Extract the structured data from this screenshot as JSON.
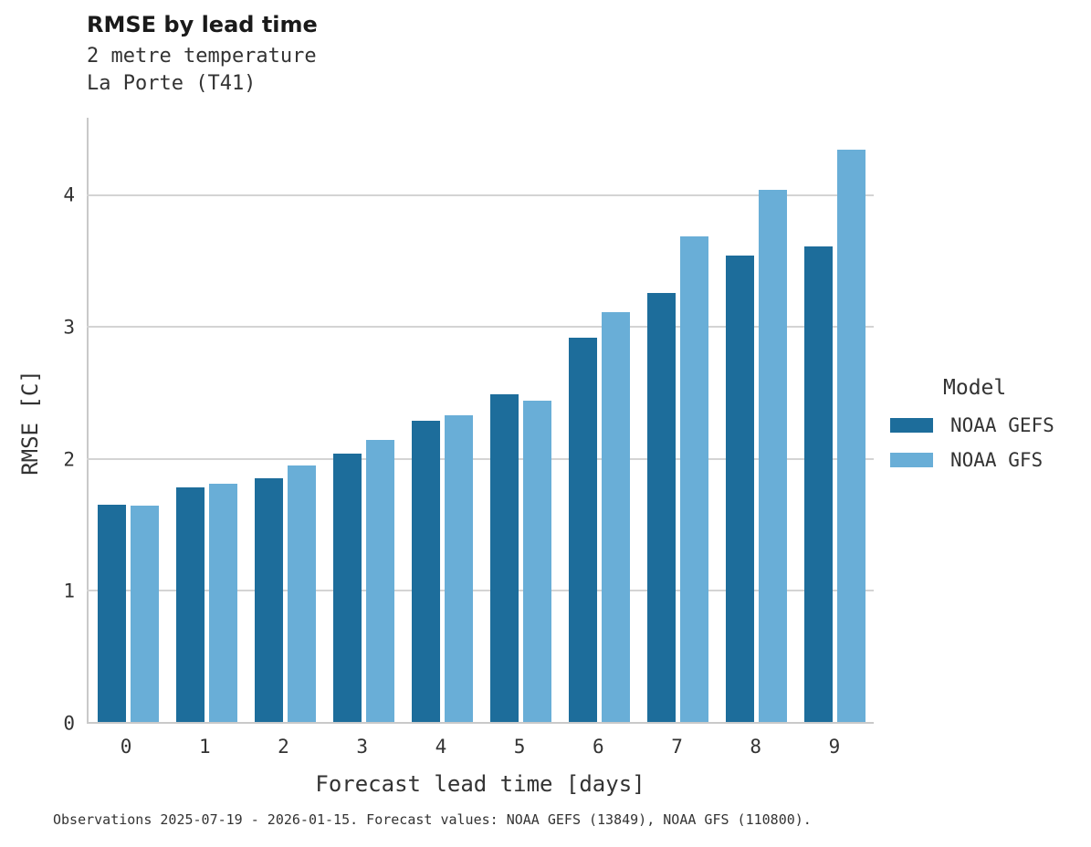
{
  "header": {
    "title": "RMSE by lead time",
    "subtitle_line1": "2 metre temperature",
    "subtitle_line2": "La Porte (T41)"
  },
  "chart_data": {
    "type": "bar",
    "title": "RMSE by lead time",
    "subtitle": [
      "2 metre temperature",
      "La Porte (T41)"
    ],
    "categories": [
      "0",
      "1",
      "2",
      "3",
      "4",
      "5",
      "6",
      "7",
      "8",
      "9"
    ],
    "series": [
      {
        "name": "NOAA GEFS",
        "color": "#1d6d9b",
        "values": [
          1.65,
          1.78,
          1.85,
          2.04,
          2.29,
          2.49,
          2.92,
          3.26,
          3.54,
          3.61
        ]
      },
      {
        "name": "NOAA GFS",
        "color": "#69aed7",
        "values": [
          1.64,
          1.81,
          1.95,
          2.14,
          2.33,
          2.44,
          3.11,
          3.69,
          4.04,
          4.35
        ]
      }
    ],
    "xlabel": "Forecast lead time [days]",
    "ylabel": "RMSE [C]",
    "yticks": [
      0,
      1,
      2,
      3,
      4
    ],
    "ylim": [
      0,
      4.59
    ],
    "grid": true,
    "legend_title": "Model",
    "legend_position": "right"
  },
  "caption": "Observations 2025-07-19 - 2026-01-15. Forecast values: NOAA GEFS (13849), NOAA GFS (110800)."
}
